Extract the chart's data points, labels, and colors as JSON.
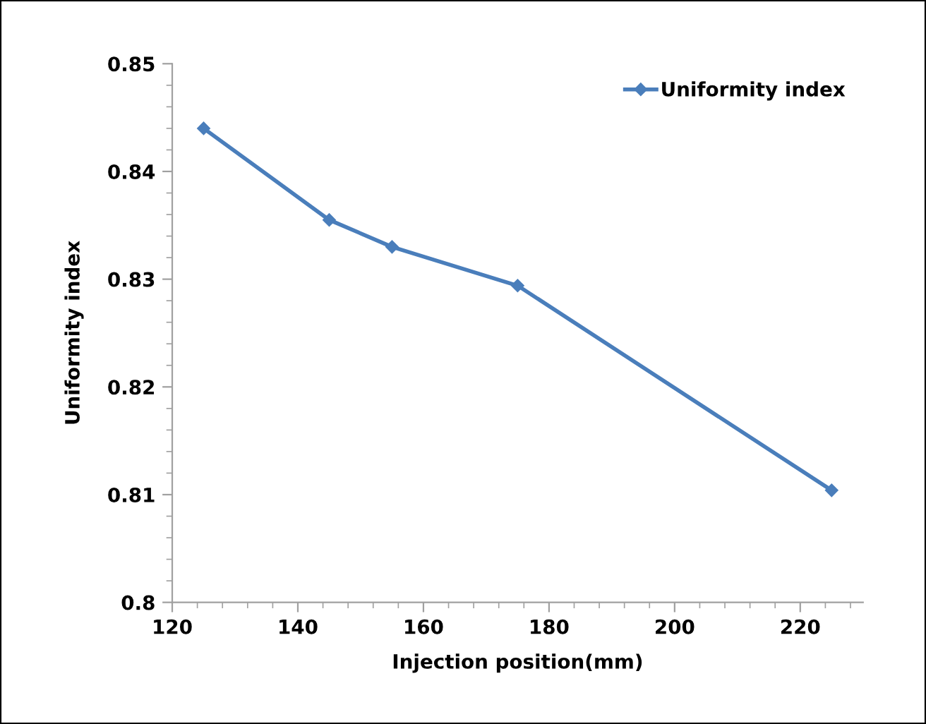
{
  "chart_data": {
    "type": "line",
    "xlabel": "Injection position(mm)",
    "ylabel": "Uniformity index",
    "x": [
      125,
      145,
      155,
      175,
      225
    ],
    "series": [
      {
        "name": "Uniformity index",
        "color": "#4a7ebb",
        "values": [
          0.844,
          0.8355,
          0.833,
          0.8294,
          0.8104
        ]
      }
    ],
    "xlim": [
      120,
      230
    ],
    "xticks": [
      120,
      {
        "value": 124,
        "label": null
      },
      {
        "value": 128,
        "label": null
      },
      {
        "value": 132,
        "label": null
      },
      {
        "value": 136,
        "label": null
      },
      140,
      {
        "value": 144,
        "label": null
      },
      {
        "value": 148,
        "label": null
      },
      {
        "value": 152,
        "label": null
      },
      {
        "value": 156,
        "label": null
      },
      160,
      {
        "value": 164,
        "label": null
      },
      {
        "value": 168,
        "label": null
      },
      {
        "value": 172,
        "label": null
      },
      {
        "value": 176,
        "label": null
      },
      180,
      {
        "value": 184,
        "label": null
      },
      {
        "value": 188,
        "label": null
      },
      {
        "value": 192,
        "label": null
      },
      {
        "value": 196,
        "label": null
      },
      200,
      {
        "value": 204,
        "label": null
      },
      {
        "value": 208,
        "label": null
      },
      {
        "value": 212,
        "label": null
      },
      {
        "value": 216,
        "label": null
      },
      220,
      {
        "value": 224,
        "label": null
      },
      {
        "value": 228,
        "label": null
      }
    ],
    "ylim": [
      0.8,
      0.85
    ],
    "yticks": [
      {
        "value": 0.8,
        "label": "0.8"
      },
      {
        "value": 0.802,
        "label": null
      },
      {
        "value": 0.804,
        "label": null
      },
      {
        "value": 0.806,
        "label": null
      },
      {
        "value": 0.808,
        "label": null
      },
      {
        "value": 0.81,
        "label": "0.81"
      },
      {
        "value": 0.812,
        "label": null
      },
      {
        "value": 0.814,
        "label": null
      },
      {
        "value": 0.816,
        "label": null
      },
      {
        "value": 0.818,
        "label": null
      },
      {
        "value": 0.82,
        "label": "0.82"
      },
      {
        "value": 0.822,
        "label": null
      },
      {
        "value": 0.824,
        "label": null
      },
      {
        "value": 0.826,
        "label": null
      },
      {
        "value": 0.828,
        "label": null
      },
      {
        "value": 0.83,
        "label": "0.83"
      },
      {
        "value": 0.832,
        "label": null
      },
      {
        "value": 0.834,
        "label": null
      },
      {
        "value": 0.836,
        "label": null
      },
      {
        "value": 0.838,
        "label": null
      },
      {
        "value": 0.84,
        "label": "0.84"
      },
      {
        "value": 0.842,
        "label": null
      },
      {
        "value": 0.844,
        "label": null
      },
      {
        "value": 0.846,
        "label": null
      },
      {
        "value": 0.848,
        "label": null
      },
      {
        "value": 0.85,
        "label": "0.85"
      }
    ],
    "marker": "diamond",
    "line_style": "solid",
    "legend": "top right",
    "grid": false
  }
}
